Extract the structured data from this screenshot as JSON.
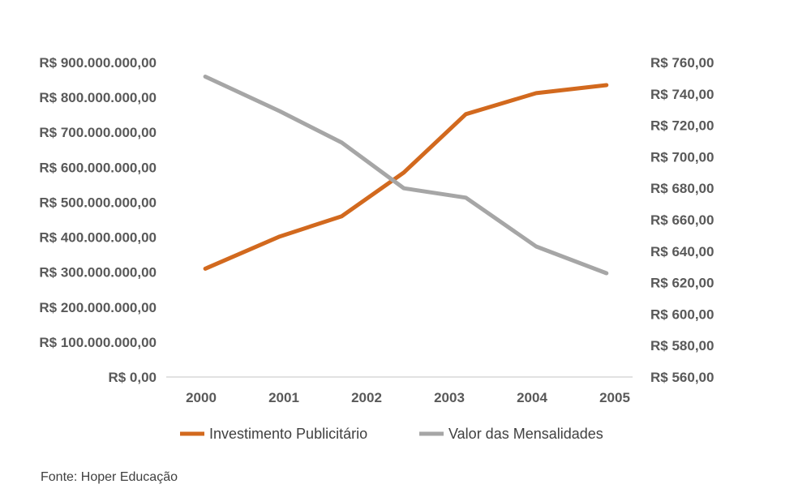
{
  "chart_data": {
    "type": "line",
    "categories": [
      "2000",
      "2001",
      "2002",
      "2003",
      "2004",
      "2005"
    ],
    "x": [
      2000.05,
      2000.95,
      2001.7,
      2002.45,
      2003.2,
      2004.05,
      2004.9
    ],
    "series": [
      {
        "name": "Investimento Publicitário",
        "axis": "left",
        "color": "#D2691E",
        "values": [
          310000000,
          402000000,
          460000000,
          585000000,
          752000000,
          812000000,
          835000000
        ]
      },
      {
        "name": "Valor das Mensalidades",
        "axis": "right",
        "color": "#A6A6A6",
        "values": [
          751,
          729,
          709,
          680,
          674,
          643,
          626
        ]
      }
    ],
    "y_left": {
      "ylim": [
        0,
        900000000
      ],
      "ticks": [
        0,
        100000000,
        200000000,
        300000000,
        400000000,
        500000000,
        600000000,
        700000000,
        800000000,
        900000000
      ],
      "tick_labels": [
        "R$ 0,00",
        "R$ 100.000.000,00",
        "R$ 200.000.000,00",
        "R$ 300.000.000,00",
        "R$ 400.000.000,00",
        "R$ 500.000.000,00",
        "R$ 600.000.000,00",
        "R$ 700.000.000,00",
        "R$ 800.000.000,00",
        "R$ 900.000.000,00"
      ]
    },
    "y_right": {
      "ylim": [
        560,
        760
      ],
      "ticks": [
        560,
        580,
        600,
        620,
        640,
        660,
        680,
        700,
        720,
        740,
        760
      ],
      "tick_labels": [
        "R$ 560,00",
        "R$ 580,00",
        "R$ 600,00",
        "R$ 620,00",
        "R$ 640,00",
        "R$ 660,00",
        "R$ 680,00",
        "R$ 700,00",
        "R$ 720,00",
        "R$ 740,00",
        "R$ 760,00"
      ]
    },
    "grid": false,
    "legend": "bottom"
  },
  "source": "Fonte: Hoper Educação"
}
